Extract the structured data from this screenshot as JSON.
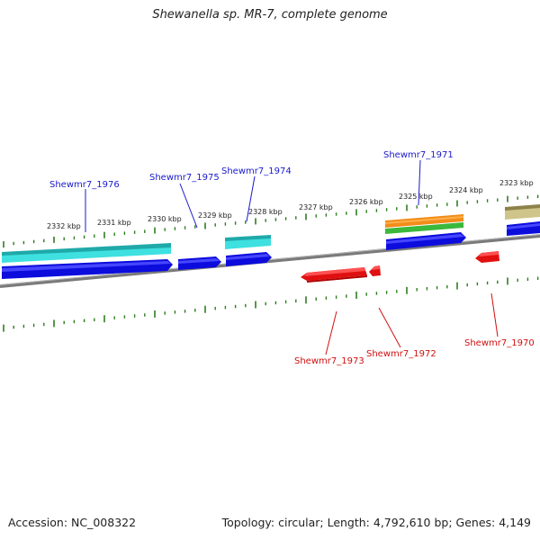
{
  "title": "Shewanella sp. MR-7, complete genome",
  "footer": {
    "accession": "Accession: NC_008322",
    "summary": "Topology: circular; Length: 4,792,610 bp; Genes: 4,149"
  },
  "colors": {
    "forward_label": "#1a1acc",
    "reverse_label": "#d01010",
    "tick": "#2e7d1f",
    "backbone": "#808080",
    "cds_forward": "#0c0cdd",
    "cds_reverse": "#e01010",
    "cyan": "#26d6d6",
    "orange": "#f28c1a",
    "green": "#3cb83c",
    "olive": "#b8ad72"
  },
  "scale_labels": [
    "2332 kbp",
    "2331 kbp",
    "2330 kbp",
    "2329 kbp",
    "2328 kbp",
    "2327 kbp",
    "2326 kbp",
    "2325 kbp",
    "2324 kbp",
    "2323 kbp"
  ],
  "genes_forward": [
    {
      "label": "Shewmr7_1976"
    },
    {
      "label": "Shewmr7_1975"
    },
    {
      "label": "Shewmr7_1974"
    },
    {
      "label": "Shewmr7_1971"
    }
  ],
  "genes_reverse": [
    {
      "label": "Shewmr7_1973"
    },
    {
      "label": "Shewmr7_1972"
    },
    {
      "label": "Shewmr7_1970"
    }
  ]
}
